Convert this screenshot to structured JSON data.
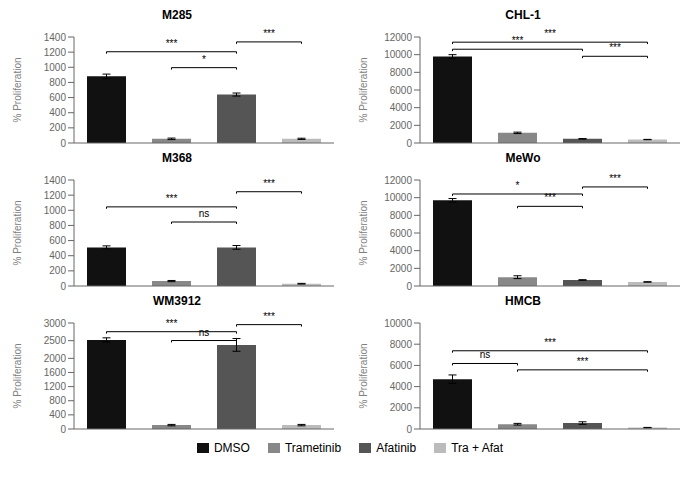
{
  "chart_data": [
    {
      "type": "bar",
      "title": "M285",
      "categories": [
        "DMSO",
        "Trametinib",
        "Afatinib",
        "Tra + Afat"
      ],
      "values": [
        880,
        55,
        640,
        55
      ],
      "errors": [
        30,
        10,
        20,
        8
      ],
      "colors": [
        "#111111",
        "#888888",
        "#555555",
        "#bbbbbb"
      ],
      "ylabel": "% Proliferation",
      "ylim": [
        0,
        1400
      ],
      "yticks": [
        0,
        200,
        400,
        600,
        800,
        1000,
        1200,
        1400
      ],
      "annotations": [
        {
          "from": "DMSO",
          "to": "Afatinib",
          "y": 1180,
          "label": "***"
        },
        {
          "from": "Trametinib",
          "to": "Afatinib",
          "y": 970,
          "label": "*"
        },
        {
          "from": "Afatinib",
          "to": "Tra + Afat",
          "y": 1310,
          "label": "***"
        }
      ],
      "tick_labels": "y",
      "grid": false,
      "legend": "bottom"
    },
    {
      "type": "bar",
      "title": "M368",
      "categories": [
        "DMSO",
        "Trametinib",
        "Afatinib",
        "Tra + Afat"
      ],
      "values": [
        510,
        65,
        510,
        30
      ],
      "errors": [
        20,
        8,
        25,
        5
      ],
      "colors": [
        "#111111",
        "#888888",
        "#555555",
        "#bbbbbb"
      ],
      "ylabel": "% Proliferation",
      "ylim": [
        0,
        1400
      ],
      "yticks": [
        0,
        200,
        400,
        600,
        800,
        1000,
        1200,
        1400
      ],
      "annotations": [
        {
          "from": "DMSO",
          "to": "Afatinib",
          "y": 1020,
          "label": "***"
        },
        {
          "from": "Trametinib",
          "to": "Afatinib",
          "y": 820,
          "label": "ns"
        },
        {
          "from": "Afatinib",
          "to": "Tra + Afat",
          "y": 1220,
          "label": "***"
        }
      ],
      "tick_labels": "y",
      "grid": false,
      "legend": "bottom"
    },
    {
      "type": "bar",
      "title": "WM3912",
      "categories": [
        "DMSO",
        "Trametinib",
        "Afatinib",
        "Tra + Afat"
      ],
      "values": [
        2520,
        110,
        2380,
        110
      ],
      "errors": [
        60,
        20,
        180,
        20
      ],
      "colors": [
        "#111111",
        "#888888",
        "#555555",
        "#bbbbbb"
      ],
      "ylabel": "% Proliferation",
      "ylim": [
        0,
        3000
      ],
      "yticks": [
        0,
        400,
        800,
        1200,
        1600,
        2000,
        2500,
        3000
      ],
      "annotations": [
        {
          "from": "DMSO",
          "to": "Afatinib",
          "y": 2700,
          "label": "***"
        },
        {
          "from": "Trametinib",
          "to": "Afatinib",
          "y": 2450,
          "label": "ns"
        },
        {
          "from": "Afatinib",
          "to": "Tra + Afat",
          "y": 2900,
          "label": "***"
        }
      ],
      "tick_labels": "y",
      "grid": false,
      "legend": "bottom"
    },
    {
      "type": "bar",
      "title": "CHL-1",
      "categories": [
        "DMSO",
        "Trametinib",
        "Afatinib",
        "Tra + Afat"
      ],
      "values": [
        9800,
        1150,
        470,
        390
      ],
      "errors": [
        200,
        80,
        30,
        20
      ],
      "colors": [
        "#111111",
        "#888888",
        "#555555",
        "#bbbbbb"
      ],
      "ylabel": "% Proliferation",
      "ylim": [
        0,
        12000
      ],
      "yticks": [
        0,
        2000,
        4000,
        6000,
        8000,
        10000,
        12000
      ],
      "annotations": [
        {
          "from": "DMSO",
          "to": "Afatinib",
          "y": 10400,
          "label": "***"
        },
        {
          "from": "DMSO",
          "to": "Tra + Afat",
          "y": 11200,
          "label": "***"
        },
        {
          "from": "Afatinib",
          "to": "Tra + Afat",
          "y": 9600,
          "label": "***"
        }
      ],
      "tick_labels": "y",
      "grid": false,
      "legend": "bottom"
    },
    {
      "type": "bar",
      "title": "MeWo",
      "categories": [
        "DMSO",
        "Trametinib",
        "Afatinib",
        "Tra + Afat"
      ],
      "values": [
        9700,
        1000,
        680,
        460
      ],
      "errors": [
        200,
        160,
        30,
        25
      ],
      "colors": [
        "#111111",
        "#888888",
        "#555555",
        "#bbbbbb"
      ],
      "ylabel": "% Proliferation",
      "ylim": [
        0,
        12000
      ],
      "yticks": [
        0,
        2000,
        4000,
        6000,
        8000,
        10000,
        12000
      ],
      "annotations": [
        {
          "from": "DMSO",
          "to": "Afatinib",
          "y": 10200,
          "label": "*"
        },
        {
          "from": "Trametinib",
          "to": "Afatinib",
          "y": 8800,
          "label": "***"
        },
        {
          "from": "Afatinib",
          "to": "Tra + Afat",
          "y": 11000,
          "label": "***"
        }
      ],
      "tick_labels": "y",
      "grid": false,
      "legend": "bottom"
    },
    {
      "type": "bar",
      "title": "HMCB",
      "categories": [
        "DMSO",
        "Trametinib",
        "Afatinib",
        "Tra + Afat"
      ],
      "values": [
        4700,
        450,
        560,
        130
      ],
      "errors": [
        400,
        80,
        120,
        20
      ],
      "colors": [
        "#111111",
        "#888888",
        "#555555",
        "#bbbbbb"
      ],
      "ylabel": "% Proliferation",
      "ylim": [
        0,
        10000
      ],
      "yticks": [
        0,
        2000,
        4000,
        6000,
        8000,
        10000
      ],
      "annotations": [
        {
          "from": "DMSO",
          "to": "Trametinib",
          "y": 6000,
          "label": "ns"
        },
        {
          "from": "DMSO",
          "to": "Tra + Afat",
          "y": 7200,
          "label": "***"
        },
        {
          "from": "Trametinib",
          "to": "Tra + Afat",
          "y": 5400,
          "label": "***"
        }
      ],
      "tick_labels": "y",
      "grid": false,
      "legend": "bottom"
    }
  ]
}
